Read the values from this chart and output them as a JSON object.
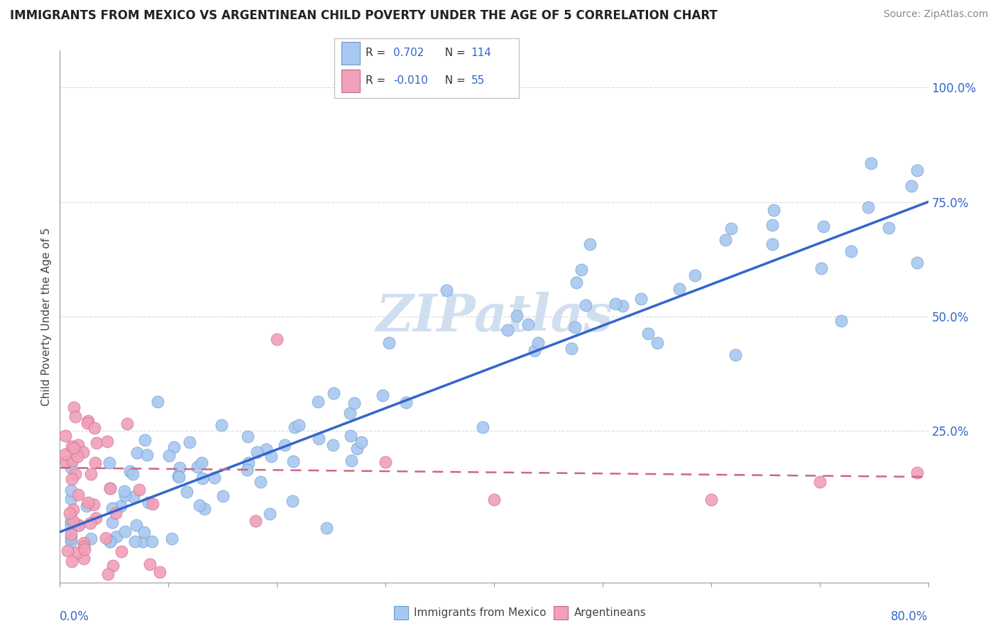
{
  "title": "IMMIGRANTS FROM MEXICO VS ARGENTINEAN CHILD POVERTY UNDER THE AGE OF 5 CORRELATION CHART",
  "source": "Source: ZipAtlas.com",
  "ylabel": "Child Poverty Under the Age of 5",
  "right_yticklabels": [
    "25.0%",
    "50.0%",
    "75.0%",
    "100.0%"
  ],
  "right_ytick_vals": [
    0.25,
    0.5,
    0.75,
    1.0
  ],
  "legend_blue_r": "0.702",
  "legend_blue_n": "114",
  "legend_pink_r": "-0.010",
  "legend_pink_n": "55",
  "legend_blue_label": "Immigrants from Mexico",
  "legend_pink_label": "Argentineans",
  "blue_scatter_color": "#a8c8f0",
  "blue_scatter_edge": "#6699cc",
  "pink_scatter_color": "#f0a0b8",
  "pink_scatter_edge": "#cc6688",
  "trend_blue_color": "#3366cc",
  "trend_pink_color": "#cc6688",
  "text_color": "#444444",
  "value_color": "#3366cc",
  "grid_color": "#cccccc",
  "watermark_color": "#d0dff0",
  "axis_color": "#999999",
  "xlim": [
    0.0,
    0.8
  ],
  "ylim": [
    -0.08,
    1.08
  ]
}
